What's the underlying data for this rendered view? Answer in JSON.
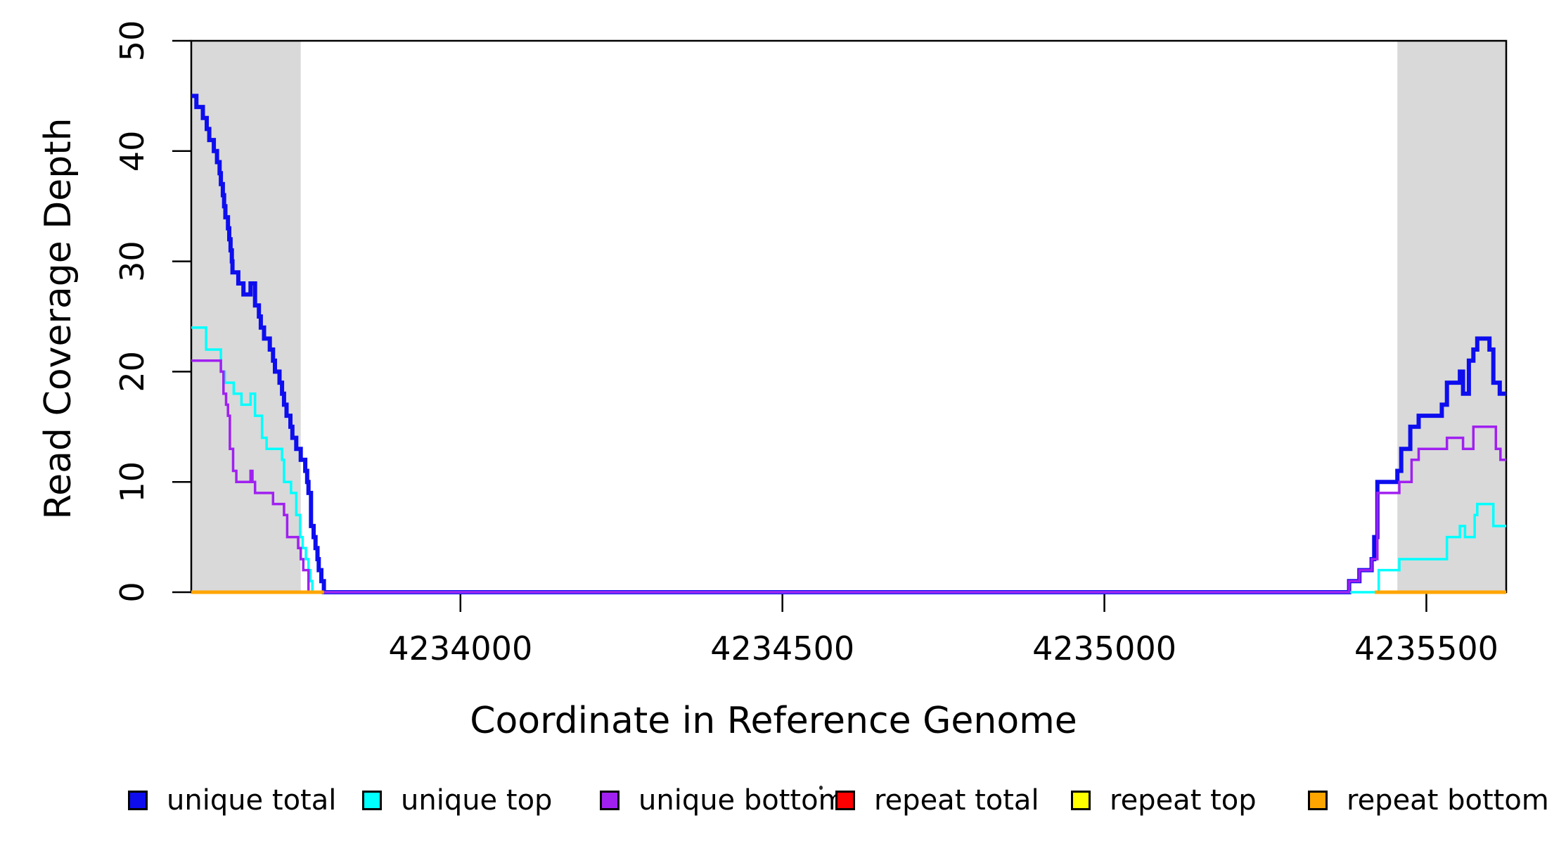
{
  "figure": {
    "background_color": "#FFFFFF",
    "axis_color": "#000000",
    "x_axis": {
      "title": "Coordinate in Reference Genome",
      "tick_labels": [
        "4234000",
        "4234500",
        "4235000",
        "4235500"
      ],
      "tick_values": [
        4234000,
        4234500,
        4235000,
        4235500
      ]
    },
    "y_axis": {
      "title": "Read Coverage Depth",
      "tick_labels": [
        "0",
        "10",
        "20",
        "30",
        "40",
        "50"
      ],
      "tick_values": [
        0,
        10,
        20,
        30,
        40,
        50
      ]
    }
  },
  "legend": {
    "items": [
      {
        "label": "unique total",
        "color": "#0D0DEE"
      },
      {
        "label": "unique top",
        "color": "#00FFFF"
      },
      {
        "label": "unique bottom",
        "color": "#A020F0"
      },
      {
        "label": "repeat total",
        "color": "#FF0000"
      },
      {
        "label": "repeat top",
        "color": "#FFFF00"
      },
      {
        "label": "repeat bottom",
        "color": "#FFA500"
      }
    ]
  },
  "chart_data": {
    "type": "line",
    "subtype": "step-after-coverage",
    "title": "",
    "xlabel": "Coordinate in Reference Genome",
    "ylabel": "Read Coverage Depth",
    "xlim": [
      4233582,
      4235624
    ],
    "ylim": [
      0,
      50
    ],
    "x_ticks": [
      4234000,
      4234500,
      4235000,
      4235500
    ],
    "y_ticks": [
      0,
      10,
      20,
      30,
      40,
      50
    ],
    "grid": false,
    "legend_position": "bottom",
    "shade_color": "#D9D9D9",
    "shaded_regions": [
      {
        "name": "repeat-region-left",
        "x0": 4233582,
        "x1": 4233752
      },
      {
        "name": "repeat-region-right",
        "x0": 4235455,
        "x1": 4235624
      }
    ],
    "series": [
      {
        "name": "unique total",
        "color": "#0D0DEE",
        "width": 6,
        "segments": [
          [
            [
              4233582,
              45
            ],
            [
              4233590,
              44
            ],
            [
              4233600,
              43
            ],
            [
              4233606,
              42
            ],
            [
              4233610,
              41
            ],
            [
              4233617,
              40
            ],
            [
              4233622,
              39
            ],
            [
              4233626,
              38
            ],
            [
              4233628,
              37
            ],
            [
              4233631,
              36
            ],
            [
              4233633,
              35
            ],
            [
              4233635,
              34
            ],
            [
              4233639,
              33
            ],
            [
              4233641,
              32
            ],
            [
              4233643,
              31
            ],
            [
              4233645,
              30
            ],
            [
              4233646,
              29
            ],
            [
              4233655,
              28
            ],
            [
              4233663,
              27
            ],
            [
              4233674,
              28
            ],
            [
              4233681,
              26
            ],
            [
              4233687,
              25
            ],
            [
              4233690,
              24
            ],
            [
              4233695,
              23
            ],
            [
              4233704,
              22
            ],
            [
              4233709,
              21
            ],
            [
              4233712,
              20
            ],
            [
              4233719,
              19
            ],
            [
              4233723,
              18
            ],
            [
              4233726,
              17
            ],
            [
              4233730,
              16
            ],
            [
              4233736,
              15
            ],
            [
              4233739,
              14
            ],
            [
              4233745,
              13
            ],
            [
              4233752,
              12
            ],
            [
              4233759,
              11
            ],
            [
              4233762,
              10
            ],
            [
              4233764,
              9
            ],
            [
              4233768,
              6
            ],
            [
              4233772,
              5
            ],
            [
              4233775,
              4
            ],
            [
              4233778,
              3
            ],
            [
              4233780,
              2
            ],
            [
              4233784,
              1
            ],
            [
              4233788,
              0
            ],
            [
              4235380,
              1
            ],
            [
              4235396,
              2
            ],
            [
              4235415,
              3
            ],
            [
              4235419,
              5
            ],
            [
              4235424,
              10
            ],
            [
              4235455,
              11
            ],
            [
              4235461,
              13
            ],
            [
              4235475,
              15
            ],
            [
              4235488,
              16
            ],
            [
              4235524,
              17
            ],
            [
              4235532,
              19
            ],
            [
              4235552,
              20
            ],
            [
              4235557,
              18
            ],
            [
              4235566,
              21
            ],
            [
              4235573,
              22
            ],
            [
              4235579,
              23
            ],
            [
              4235598,
              22
            ],
            [
              4235604,
              19
            ],
            [
              4235614,
              18
            ],
            [
              4235624,
              18
            ]
          ]
        ]
      },
      {
        "name": "unique top",
        "color": "#00FFFF",
        "width": 3.5,
        "segments": [
          [
            [
              4233582,
              24
            ],
            [
              4233605,
              22
            ],
            [
              4233628,
              20
            ],
            [
              4233634,
              19
            ],
            [
              4233648,
              18
            ],
            [
              4233660,
              17
            ],
            [
              4233674,
              18
            ],
            [
              4233681,
              16
            ],
            [
              4233692,
              14
            ],
            [
              4233699,
              13
            ],
            [
              4233723,
              12
            ],
            [
              4233726,
              10
            ],
            [
              4233737,
              9
            ],
            [
              4233745,
              7
            ],
            [
              4233751,
              5
            ],
            [
              4233755,
              4
            ],
            [
              4233760,
              3
            ],
            [
              4233764,
              2
            ],
            [
              4233767,
              1
            ],
            [
              4233770,
              0
            ],
            [
              4235426,
              2
            ],
            [
              4235458,
              3
            ],
            [
              4235532,
              5
            ],
            [
              4235552,
              6
            ],
            [
              4235560,
              5
            ],
            [
              4235575,
              7
            ],
            [
              4235579,
              8
            ],
            [
              4235604,
              6
            ],
            [
              4235624,
              6
            ]
          ]
        ]
      },
      {
        "name": "unique bottom",
        "color": "#A020F0",
        "width": 3.5,
        "segments": [
          [
            [
              4233582,
              21
            ],
            [
              4233628,
              20
            ],
            [
              4233632,
              18
            ],
            [
              4233636,
              17
            ],
            [
              4233639,
              16
            ],
            [
              4233642,
              13
            ],
            [
              4233647,
              11
            ],
            [
              4233652,
              10
            ],
            [
              4233674,
              11
            ],
            [
              4233677,
              10
            ],
            [
              4233681,
              9
            ],
            [
              4233709,
              8
            ],
            [
              4233726,
              7
            ],
            [
              4233731,
              5
            ],
            [
              4233748,
              4
            ],
            [
              4233752,
              3
            ],
            [
              4233756,
              2
            ],
            [
              4233764,
              0
            ],
            [
              4235380,
              1
            ],
            [
              4235396,
              2
            ],
            [
              4235415,
              3
            ],
            [
              4235424,
              9
            ],
            [
              4235458,
              10
            ],
            [
              4235477,
              12
            ],
            [
              4235488,
              13
            ],
            [
              4235532,
              14
            ],
            [
              4235557,
              13
            ],
            [
              4235573,
              15
            ],
            [
              4235608,
              13
            ],
            [
              4235615,
              12
            ],
            [
              4235624,
              12
            ]
          ]
        ]
      },
      {
        "name": "repeat total",
        "color": "#FF0000",
        "width": 3.5,
        "segments": [
          [
            [
              4233582,
              0
            ],
            [
              4233788,
              0
            ]
          ],
          [
            [
              4235420,
              0
            ],
            [
              4235624,
              0
            ]
          ]
        ]
      },
      {
        "name": "repeat top",
        "color": "#FFFF00",
        "width": 3.5,
        "segments": [
          [
            [
              4233582,
              0
            ],
            [
              4233788,
              0
            ]
          ],
          [
            [
              4235420,
              0
            ],
            [
              4235624,
              0
            ]
          ]
        ]
      },
      {
        "name": "repeat bottom",
        "color": "#FFA500",
        "width": 5,
        "segments": [
          [
            [
              4233582,
              0
            ],
            [
              4233788,
              0
            ]
          ],
          [
            [
              4235420,
              0
            ],
            [
              4235624,
              0
            ]
          ]
        ]
      }
    ]
  }
}
